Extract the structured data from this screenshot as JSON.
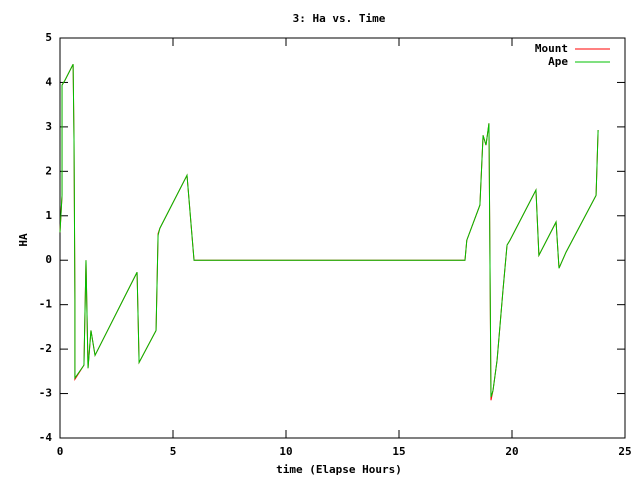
{
  "chart_data": {
    "type": "line",
    "title": "3: Ha vs. Time",
    "x_label": "time (Elapse Hours)",
    "y_label": "HA",
    "x": [
      0,
      0.09,
      0.09,
      0.22,
      0.58,
      0.62,
      0.66,
      0.66,
      1.06,
      1.15,
      1.24,
      1.37,
      1.55,
      3.41,
      3.5,
      4.25,
      4.34,
      4.42,
      5.62,
      5.93,
      17.92,
      18.0,
      18.58,
      18.72,
      18.85,
      18.98,
      19.07,
      19.16,
      19.34,
      19.6,
      19.78,
      19.91,
      21.06,
      21.19,
      21.95,
      22.08,
      22.39,
      23.72,
      23.81
    ],
    "series": [
      {
        "name": "Mount",
        "color": "#ff0000",
        "values": [
          0.63,
          1.46,
          3.94,
          4.05,
          4.41,
          2.7,
          -0.9,
          -2.68,
          -2.36,
          0,
          -2.43,
          -1.58,
          -2.14,
          -0.27,
          -2.3,
          -1.58,
          0.6,
          0.72,
          1.91,
          0,
          0,
          0.45,
          1.24,
          2.81,
          2.59,
          3.08,
          -3.15,
          -2.93,
          -2.25,
          -0.68,
          0.34,
          0.45,
          1.58,
          0.11,
          0.86,
          -0.18,
          0.18,
          1.46,
          2.93
        ]
      },
      {
        "name": "Ape",
        "color": "#00c000",
        "values": [
          0.63,
          1.46,
          3.94,
          4.05,
          4.41,
          2.7,
          -0.9,
          -2.65,
          -2.36,
          0,
          -2.43,
          -1.58,
          -2.14,
          -0.27,
          -2.3,
          -1.58,
          0.56,
          0.72,
          1.91,
          0,
          0,
          0.45,
          1.24,
          2.81,
          2.59,
          3.08,
          -3.08,
          -2.93,
          -2.25,
          -0.68,
          0.34,
          0.45,
          1.58,
          0.11,
          0.86,
          -0.18,
          0.18,
          1.46,
          2.93
        ]
      }
    ],
    "xlim": [
      0,
      25
    ],
    "xticks": [
      0,
      5,
      10,
      15,
      20,
      25
    ],
    "ylim": [
      -4,
      5
    ],
    "yticks": [
      -4,
      -3,
      -2,
      -1,
      0,
      1,
      2,
      3,
      4,
      5
    ],
    "legend": "top-right"
  }
}
